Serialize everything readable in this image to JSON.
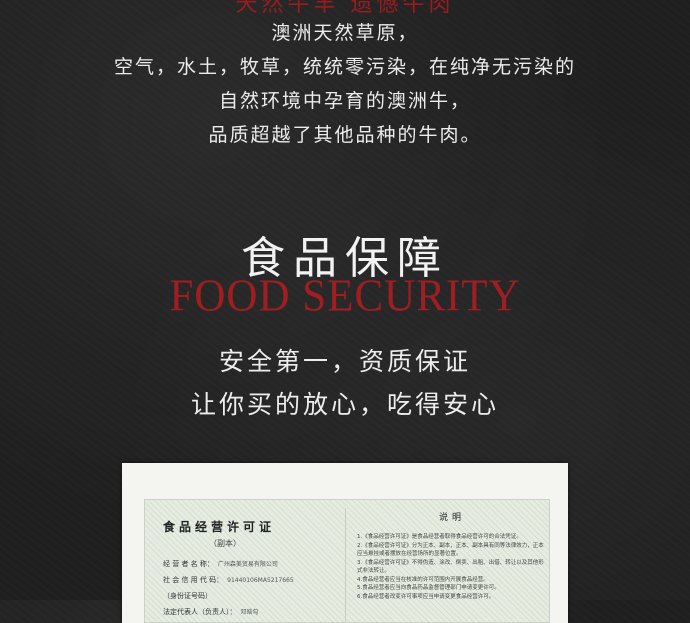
{
  "header_partial": "天然牛羊 遗憾牛肉",
  "intro_lines": [
    "澳洲天然草原，",
    "空气，水土，牧草，统统零污染，在纯净无污染的",
    "自然环境中孕育的澳洲牛，",
    "品质超越了其他品种的牛肉。"
  ],
  "section": {
    "title_cn": "食品保障",
    "title_en": "FOOD SECURITY",
    "slogan": [
      "安全第一，资质保证",
      "让你买的放心，吃得安心"
    ]
  },
  "license": {
    "title": "食品经营许可证",
    "subtitle": "（副本）",
    "fields": [
      {
        "label": "经 营 者 名 称：",
        "value": "广州森美贸易有限公司"
      },
      {
        "label": "社 会 信 用 代 码：",
        "value": "91440106MA5217665"
      },
      {
        "label": "（身份证号码）",
        "value": ""
      },
      {
        "label": "法定代表人（负责人）：",
        "value": "邓晗勾"
      }
    ],
    "notes_title": "说明",
    "notes": [
      "1.《食品经营许可证》是食品经营者取得食品经营许可的合法凭证。",
      "2.《食品经营许可证》分为正本、副本，正本、副本具有同等法律效力，正本应当悬挂或者摆放在经营场所的显著位置。",
      "3.《食品经营许可证》不得伪造、涂改、倒卖、出租、出借、转让以及其他形式非法转让。",
      "4.食品经营者应当在核准的许可范围内开展食品经营。",
      "5.食品经营者应当向食品药品监督管理部门申请变更许可。",
      "6.食品经营者改变许可事项应当申请变更食品经营许可。"
    ]
  },
  "colors": {
    "accent_red": "#a01e22",
    "background": "#1f1f1f",
    "text": "#ececec"
  }
}
